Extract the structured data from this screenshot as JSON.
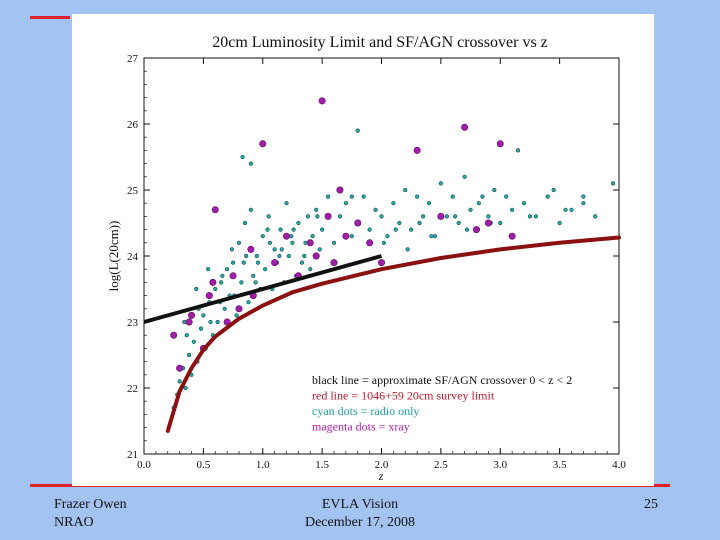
{
  "colors": {
    "background": "#a3c3f2",
    "accent": "#e0202c",
    "black_line": "#111111",
    "red_line": "#8b1010",
    "cyan_dot": "#2aa7a7",
    "magenta_dot": "#a11ea8"
  },
  "chart_data": {
    "type": "scatter",
    "title": "20cm Luminosity Limit and SF/AGN crossover vs z",
    "xlabel": "z",
    "ylabel": "log(L(20cm))",
    "xlim": [
      0.0,
      4.0
    ],
    "ylim": [
      21,
      27
    ],
    "xticks": [
      "0.0",
      "0.5",
      "1.0",
      "1.5",
      "2.0",
      "2.5",
      "3.0",
      "3.5",
      "4.0"
    ],
    "yticks": [
      "21",
      "22",
      "23",
      "24",
      "25",
      "26",
      "27"
    ],
    "legend": [
      {
        "text": "black line = approximate SF/AGN crossover 0 < z < 2",
        "color": "#111111"
      },
      {
        "text": "red line = 1046+59 20cm survey limit",
        "color": "#c0182a"
      },
      {
        "text": "cyan dots = radio only",
        "color": "#1aa3a3"
      },
      {
        "text": "magenta dots = xray",
        "color": "#b21eb4"
      }
    ],
    "series": [
      {
        "name": "SF/AGN crossover",
        "style": "line",
        "color": "#111111",
        "x": [
          0.0,
          2.0
        ],
        "y": [
          23.0,
          24.0
        ]
      },
      {
        "name": "20cm survey limit",
        "style": "line",
        "color": "#8b1010",
        "x": [
          0.2,
          0.3,
          0.4,
          0.5,
          0.6,
          0.8,
          1.0,
          1.25,
          1.5,
          2.0,
          2.5,
          3.0,
          3.5,
          4.0
        ],
        "y": [
          21.35,
          21.95,
          22.3,
          22.58,
          22.78,
          23.05,
          23.25,
          23.45,
          23.58,
          23.8,
          23.97,
          24.1,
          24.2,
          24.28
        ]
      },
      {
        "name": "radio only",
        "style": "scatter",
        "color": "#2aa7a7",
        "x": [
          0.25,
          0.28,
          0.3,
          0.33,
          0.35,
          0.38,
          0.4,
          0.42,
          0.45,
          0.48,
          0.5,
          0.52,
          0.55,
          0.58,
          0.6,
          0.62,
          0.65,
          0.68,
          0.7,
          0.72,
          0.75,
          0.78,
          0.8,
          0.82,
          0.85,
          0.88,
          0.9,
          0.92,
          0.95,
          0.98,
          1.0,
          1.02,
          1.05,
          1.08,
          1.1,
          1.12,
          1.15,
          1.18,
          1.2,
          1.22,
          1.25,
          1.28,
          1.3,
          1.33,
          1.35,
          1.38,
          1.4,
          1.42,
          1.45,
          1.48,
          1.5,
          1.55,
          1.6,
          1.65,
          1.7,
          1.75,
          1.8,
          1.85,
          1.9,
          1.95,
          2.0,
          2.05,
          2.1,
          2.15,
          2.2,
          2.25,
          2.3,
          2.35,
          2.4,
          2.45,
          2.5,
          2.55,
          2.6,
          2.65,
          2.7,
          2.75,
          2.8,
          2.85,
          2.9,
          2.95,
          3.0,
          3.1,
          3.2,
          3.3,
          3.4,
          3.5,
          3.6,
          3.7,
          3.8,
          3.95,
          0.36,
          0.46,
          0.56,
          0.66,
          0.76,
          0.86,
          0.96,
          1.06,
          1.16,
          1.26,
          1.36,
          1.46,
          0.34,
          0.44,
          0.54,
          0.64,
          0.74,
          0.84,
          0.94,
          1.04,
          1.14,
          1.24,
          0.83,
          0.9,
          1.75,
          1.8,
          2.02,
          2.12,
          2.22,
          2.32,
          2.42,
          2.62,
          2.72,
          2.82,
          2.92,
          3.05,
          3.15,
          3.25,
          3.45,
          3.55,
          3.7
        ],
        "y": [
          21.7,
          21.9,
          22.1,
          22.3,
          22.0,
          22.5,
          22.2,
          22.7,
          22.4,
          22.9,
          23.1,
          22.6,
          23.3,
          22.8,
          23.5,
          23.0,
          23.6,
          23.2,
          23.8,
          23.4,
          23.9,
          23.1,
          24.2,
          23.6,
          24.5,
          23.3,
          24.7,
          23.7,
          24.0,
          23.5,
          24.3,
          23.8,
          24.6,
          23.5,
          24.1,
          23.9,
          24.4,
          23.6,
          24.8,
          24.0,
          24.2,
          23.7,
          24.5,
          23.9,
          24.0,
          24.6,
          23.8,
          24.3,
          24.7,
          24.1,
          24.4,
          24.9,
          24.2,
          24.6,
          24.8,
          24.3,
          24.5,
          24.9,
          24.4,
          24.7,
          24.6,
          24.3,
          24.8,
          24.5,
          25.0,
          24.4,
          24.9,
          24.6,
          24.8,
          24.3,
          25.1,
          24.6,
          24.9,
          24.5,
          25.2,
          24.7,
          24.4,
          24.9,
          24.6,
          25.0,
          24.5,
          24.7,
          24.8,
          24.6,
          24.9,
          24.5,
          24.7,
          24.8,
          24.6,
          25.1,
          22.8,
          23.2,
          23.0,
          23.7,
          23.4,
          24.0,
          23.9,
          24.2,
          24.1,
          24.4,
          24.2,
          24.6,
          23.0,
          23.5,
          23.8,
          23.3,
          24.1,
          23.9,
          23.6,
          24.4,
          24.0,
          24.3,
          25.5,
          25.4,
          24.9,
          25.9,
          24.2,
          24.4,
          24.1,
          24.5,
          24.3,
          24.6,
          24.4,
          24.8,
          24.5,
          24.9,
          25.6,
          24.6,
          25.0,
          24.7,
          24.9
        ]
      },
      {
        "name": "xray",
        "style": "scatter",
        "color": "#a11ea8",
        "x": [
          0.25,
          0.3,
          0.4,
          0.5,
          0.55,
          0.6,
          0.7,
          0.75,
          0.8,
          0.9,
          1.0,
          1.1,
          1.2,
          1.3,
          1.4,
          1.5,
          1.6,
          1.65,
          1.7,
          1.8,
          1.9,
          2.0,
          2.3,
          2.5,
          2.7,
          2.8,
          2.9,
          3.0,
          3.1,
          1.55,
          0.58,
          0.92,
          1.45,
          0.38
        ],
        "y": [
          22.8,
          22.3,
          23.1,
          22.6,
          23.4,
          24.7,
          23.0,
          23.7,
          23.2,
          24.1,
          25.7,
          23.9,
          24.3,
          23.7,
          24.2,
          26.35,
          23.9,
          25.0,
          24.3,
          24.5,
          24.2,
          23.9,
          25.6,
          24.6,
          25.95,
          24.4,
          24.5,
          25.7,
          24.3,
          24.6,
          23.6,
          23.4,
          24.0,
          23.0
        ]
      }
    ]
  },
  "footer": {
    "left_name": "Frazer Owen",
    "left_org": "NRAO",
    "center_title": "EVLA Vision",
    "center_date": "December 17, 2008",
    "page_number": "25"
  }
}
